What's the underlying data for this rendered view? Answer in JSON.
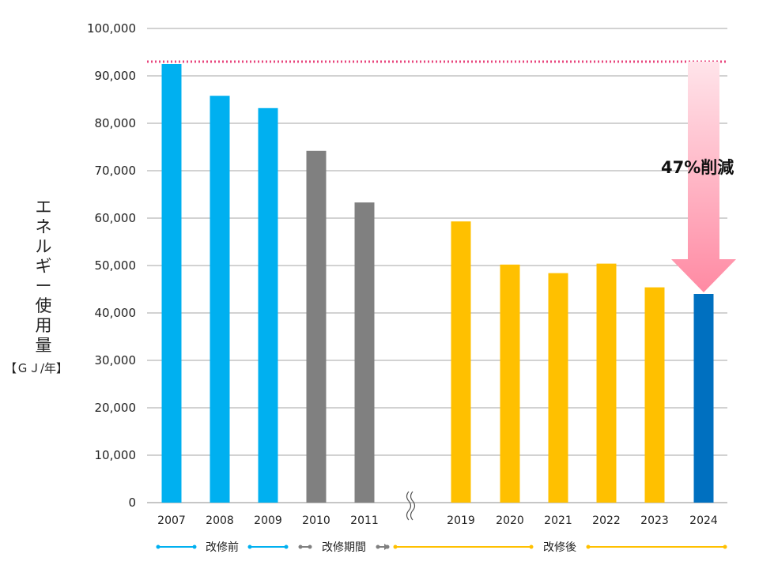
{
  "chart_data": {
    "type": "bar",
    "categories": [
      "2007",
      "2008",
      "2009",
      "2010",
      "2011",
      "2019",
      "2020",
      "2021",
      "2022",
      "2023",
      "2024"
    ],
    "values": [
      92500,
      85800,
      83200,
      74200,
      63300,
      59300,
      50200,
      48400,
      50400,
      45400,
      44000
    ],
    "phases": [
      "before",
      "before",
      "before",
      "during",
      "during",
      "after",
      "after",
      "after",
      "after",
      "after",
      "highlight"
    ],
    "ylim": [
      0,
      100000
    ],
    "yticks": [
      "0",
      "10,000",
      "20,000",
      "30,000",
      "40,000",
      "50,000",
      "60,000",
      "70,000",
      "80,000",
      "90,000",
      "100,000"
    ],
    "reference_line": 93000,
    "ylabel": "エネルギー使用量",
    "yunit": "【ＧＪ/年】",
    "annotation": "47%削減",
    "periods": {
      "before": "改修前",
      "during": "改修期間",
      "after": "改修後"
    },
    "grid": true
  },
  "colors": {
    "before": "#00B0F0",
    "during": "#808080",
    "after": "#FFC000",
    "highlight": "#0070C0",
    "reference_line": "#E8457D",
    "arrow_top": "#FFE4EA",
    "arrow_bottom": "#FF8AA3",
    "grid": "#A6A6A6"
  }
}
